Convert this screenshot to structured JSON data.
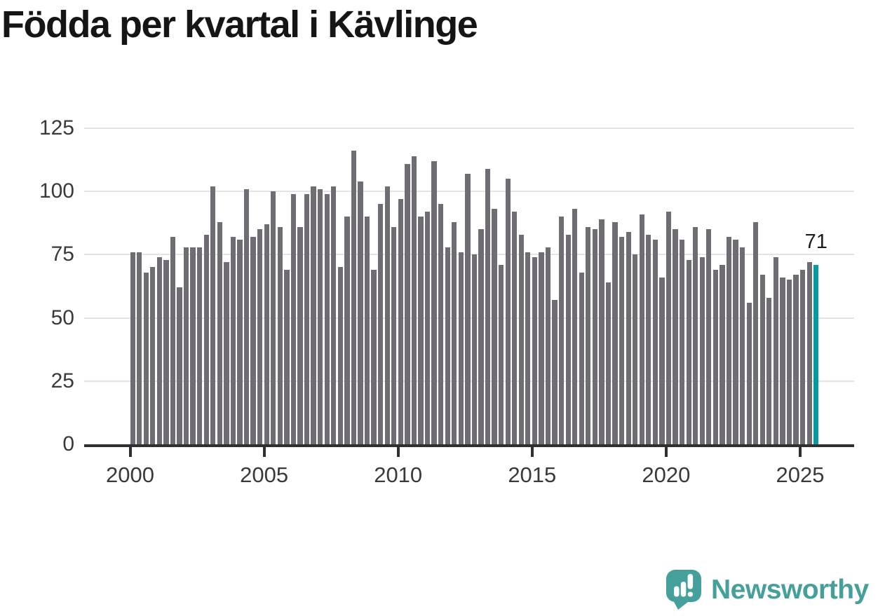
{
  "title": "Födda per kvartal i Kävlinge",
  "annotation": {
    "last_value_label": "71"
  },
  "branding": {
    "wordmark": "Newsworthy",
    "icon": "speech-bubble-bar-chart-icon",
    "color": "#45a09c"
  },
  "colors": {
    "bar": "#706c74",
    "highlight": "#0999a0",
    "gridline": "#e4e4e4",
    "axis": "#2f2f2f",
    "labels": "#3a3a3a",
    "title": "#151515"
  },
  "chart_data": {
    "type": "bar",
    "title": "Födda per kvartal i Kävlinge",
    "unit": "births per quarter",
    "start_year": 2000,
    "periods_per_year": 4,
    "x_tick_labels": [
      "2000",
      "2005",
      "2010",
      "2015",
      "2020",
      "2025"
    ],
    "y_tick_labels_top_to_bottom": [
      "125",
      "100",
      "75",
      "50",
      "25",
      "0"
    ],
    "ylim": [
      0,
      125
    ],
    "grid": true,
    "legend": false,
    "highlight_last_bar": true,
    "last_bar_label": "71",
    "values": [
      76,
      76,
      68,
      70,
      74,
      73,
      82,
      62,
      78,
      78,
      78,
      83,
      102,
      88,
      72,
      82,
      81,
      101,
      82,
      85,
      87,
      100,
      86,
      69,
      99,
      86,
      99,
      102,
      101,
      99,
      102,
      70,
      90,
      116,
      104,
      90,
      69,
      95,
      102,
      86,
      97,
      111,
      114,
      90,
      92,
      112,
      95,
      78,
      88,
      76,
      107,
      75,
      85,
      109,
      93,
      71,
      105,
      92,
      83,
      76,
      74,
      76,
      78,
      57,
      90,
      83,
      93,
      68,
      86,
      85,
      89,
      64,
      88,
      82,
      84,
      75,
      91,
      83,
      81,
      66,
      92,
      85,
      81,
      73,
      86,
      74,
      85,
      69,
      71,
      82,
      81,
      78,
      56,
      88,
      67,
      58,
      74,
      66,
      65,
      67,
      69,
      72,
      71
    ]
  }
}
